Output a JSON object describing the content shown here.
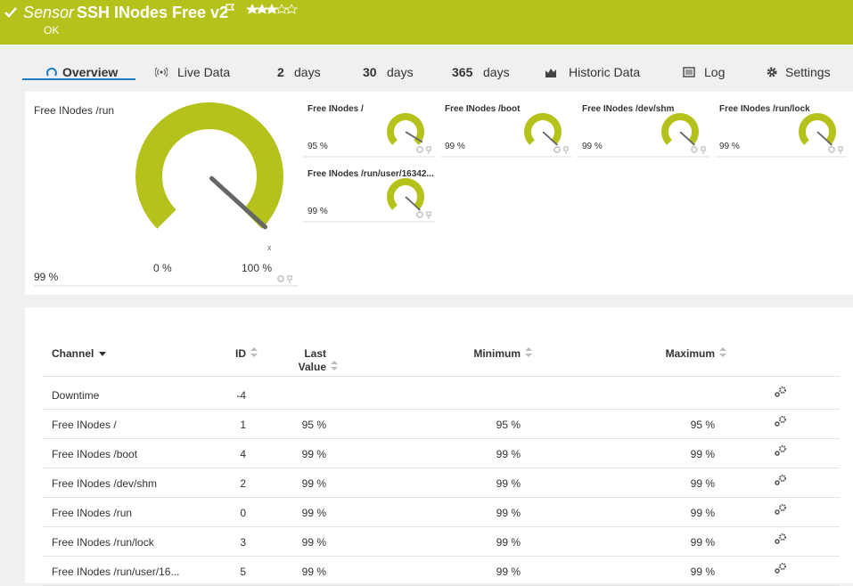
{
  "header": {
    "prefix": "Sensor",
    "title": "SSH INodes Free v2",
    "status": "OK"
  },
  "tabs": [
    {
      "label": "Overview"
    },
    {
      "label": "Live Data"
    },
    {
      "number": "2",
      "label": "days"
    },
    {
      "number": "30",
      "label": "days"
    },
    {
      "number": "365",
      "label": "days"
    },
    {
      "label": "Historic Data"
    },
    {
      "label": "Log"
    },
    {
      "label": "Settings"
    }
  ],
  "main_gauge": {
    "title": "Free INodes /run",
    "value": "99 %",
    "min_label": "0 %",
    "max_label": "100 %",
    "needle_label": "x"
  },
  "gauges": [
    {
      "title": "Free INodes /",
      "value": "95 %"
    },
    {
      "title": "Free INodes /boot",
      "value": "99 %"
    },
    {
      "title": "Free INodes /dev/shm",
      "value": "99 %"
    },
    {
      "title": "Free INodes /run/lock",
      "value": "99 %"
    },
    {
      "title": "Free INodes /run/user/16342...",
      "value": "99 %"
    }
  ],
  "table": {
    "columns": [
      "Channel",
      "ID",
      "Last Value",
      "Minimum",
      "Maximum"
    ],
    "rows": [
      [
        "Downtime",
        "-4",
        null,
        null,
        null
      ],
      [
        "Free INodes /",
        "1",
        "95 %",
        "95 %",
        "95 %"
      ],
      [
        "Free INodes /boot",
        "4",
        "99 %",
        "99 %",
        "99 %"
      ],
      [
        "Free INodes /dev/shm",
        "2",
        "99 %",
        "99 %",
        "99 %"
      ],
      [
        "Free INodes /run",
        "0",
        "99 %",
        "99 %",
        "99 %"
      ],
      [
        "Free INodes /run/lock",
        "3",
        "99 %",
        "99 %",
        "99 %"
      ],
      [
        "Free INodes /run/user/16...",
        "5",
        "99 %",
        "99 %",
        "99 %"
      ]
    ]
  }
}
